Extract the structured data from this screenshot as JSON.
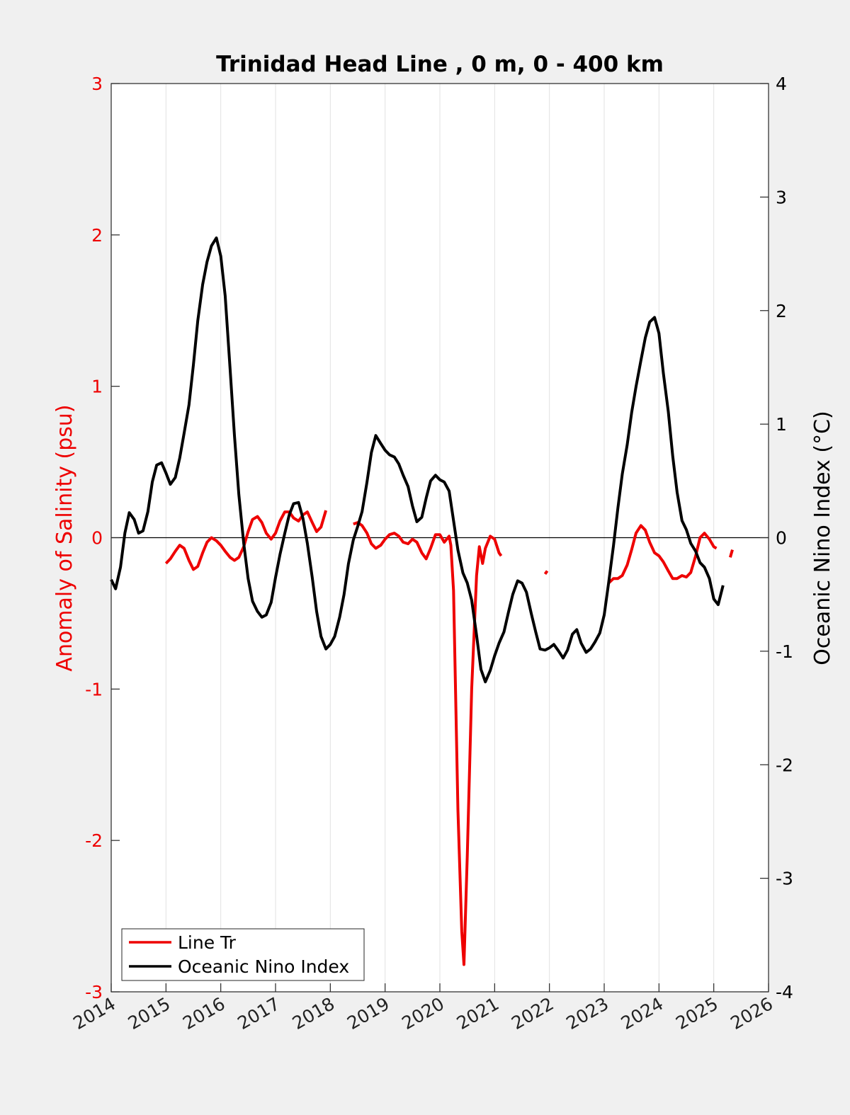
{
  "chart_data": {
    "type": "line",
    "title": "Trinidad Head Line , 0 m, 0 - 400 km",
    "ylabel": "Anomaly of Salinity (psu)",
    "y2label": "Oceanic Nino Index (°C)",
    "xlim": [
      2014,
      2026
    ],
    "ylim": [
      -3,
      3
    ],
    "y2lim": [
      -4,
      4
    ],
    "x_ticks": [
      2014,
      2015,
      2016,
      2017,
      2018,
      2019,
      2020,
      2021,
      2022,
      2023,
      2024,
      2025,
      2026
    ],
    "x_tick_labels": [
      "2014",
      "2015",
      "2016",
      "2017",
      "2018",
      "2019",
      "2020",
      "2021",
      "2022",
      "2023",
      "2024",
      "2025",
      "2026"
    ],
    "y_ticks": [
      -3,
      -2,
      -1,
      0,
      1,
      2,
      3
    ],
    "y_tick_labels": [
      "-3",
      "-2",
      "-1",
      "0",
      "1",
      "2",
      "3"
    ],
    "y2_ticks": [
      -4,
      -3,
      -2,
      -1,
      0,
      1,
      2,
      3,
      4
    ],
    "y2_tick_labels": [
      "-4",
      "-3",
      "-2",
      "-1",
      "0",
      "1",
      "2",
      "3",
      "4"
    ],
    "grid": "vertical",
    "legend_position": "bottom-left",
    "series": [
      {
        "name": "Line Tr",
        "color": "#ee0000",
        "axis": "left",
        "segments": [
          [
            [
              2015.0,
              -0.17
            ],
            [
              2015.08,
              -0.14
            ],
            [
              2015.17,
              -0.09
            ],
            [
              2015.25,
              -0.05
            ],
            [
              2015.33,
              -0.07
            ],
            [
              2015.42,
              -0.15
            ],
            [
              2015.5,
              -0.21
            ],
            [
              2015.58,
              -0.19
            ],
            [
              2015.67,
              -0.1
            ],
            [
              2015.75,
              -0.03
            ],
            [
              2015.83,
              0.0
            ],
            [
              2015.92,
              -0.02
            ],
            [
              2016.0,
              -0.05
            ],
            [
              2016.08,
              -0.09
            ],
            [
              2016.17,
              -0.13
            ],
            [
              2016.25,
              -0.15
            ],
            [
              2016.33,
              -0.13
            ],
            [
              2016.42,
              -0.06
            ],
            [
              2016.5,
              0.04
            ],
            [
              2016.58,
              0.12
            ],
            [
              2016.67,
              0.14
            ],
            [
              2016.75,
              0.1
            ],
            [
              2016.83,
              0.03
            ],
            [
              2016.92,
              -0.01
            ],
            [
              2017.0,
              0.03
            ],
            [
              2017.08,
              0.11
            ],
            [
              2017.17,
              0.17
            ],
            [
              2017.25,
              0.17
            ],
            [
              2017.33,
              0.13
            ],
            [
              2017.42,
              0.11
            ],
            [
              2017.5,
              0.15
            ],
            [
              2017.58,
              0.17
            ],
            [
              2017.67,
              0.1
            ],
            [
              2017.75,
              0.04
            ],
            [
              2017.83,
              0.07
            ],
            [
              2017.92,
              0.18
            ]
          ],
          [
            [
              2018.42,
              0.09
            ],
            [
              2018.5,
              0.1
            ],
            [
              2018.58,
              0.08
            ],
            [
              2018.67,
              0.03
            ],
            [
              2018.75,
              -0.04
            ],
            [
              2018.83,
              -0.07
            ],
            [
              2018.92,
              -0.05
            ],
            [
              2019.0,
              -0.01
            ],
            [
              2019.08,
              0.02
            ],
            [
              2019.17,
              0.03
            ],
            [
              2019.25,
              0.01
            ],
            [
              2019.33,
              -0.03
            ],
            [
              2019.42,
              -0.04
            ],
            [
              2019.5,
              -0.01
            ],
            [
              2019.58,
              -0.03
            ],
            [
              2019.67,
              -0.1
            ],
            [
              2019.75,
              -0.14
            ],
            [
              2019.83,
              -0.07
            ],
            [
              2019.92,
              0.02
            ],
            [
              2020.0,
              0.02
            ],
            [
              2020.08,
              -0.03
            ],
            [
              2020.17,
              0.01
            ],
            [
              2020.2,
              -0.05
            ],
            [
              2020.25,
              -0.35
            ],
            [
              2020.33,
              -1.8
            ],
            [
              2020.4,
              -2.6
            ],
            [
              2020.44,
              -2.82
            ],
            [
              2020.5,
              -2.1
            ],
            [
              2020.58,
              -1.0
            ],
            [
              2020.67,
              -0.25
            ],
            [
              2020.72,
              -0.06
            ],
            [
              2020.78,
              -0.17
            ],
            [
              2020.83,
              -0.07
            ],
            [
              2020.92,
              0.01
            ],
            [
              2021.0,
              -0.01
            ],
            [
              2021.08,
              -0.1
            ],
            [
              2021.12,
              -0.12
            ]
          ],
          [
            [
              2021.92,
              -0.24
            ],
            [
              2021.96,
              -0.22
            ]
          ],
          [
            [
              2023.08,
              -0.3
            ],
            [
              2023.17,
              -0.27
            ],
            [
              2023.25,
              -0.27
            ],
            [
              2023.33,
              -0.25
            ],
            [
              2023.42,
              -0.18
            ],
            [
              2023.5,
              -0.08
            ],
            [
              2023.58,
              0.03
            ],
            [
              2023.67,
              0.08
            ],
            [
              2023.75,
              0.05
            ],
            [
              2023.83,
              -0.03
            ],
            [
              2023.92,
              -0.1
            ],
            [
              2024.0,
              -0.12
            ],
            [
              2024.08,
              -0.16
            ],
            [
              2024.17,
              -0.22
            ],
            [
              2024.25,
              -0.27
            ],
            [
              2024.33,
              -0.27
            ],
            [
              2024.42,
              -0.25
            ],
            [
              2024.5,
              -0.26
            ],
            [
              2024.58,
              -0.23
            ],
            [
              2024.67,
              -0.12
            ],
            [
              2024.75,
              0.0
            ],
            [
              2024.83,
              0.03
            ],
            [
              2024.92,
              -0.01
            ],
            [
              2025.0,
              -0.06
            ],
            [
              2025.05,
              -0.07
            ]
          ],
          [
            [
              2025.3,
              -0.13
            ],
            [
              2025.34,
              -0.08
            ]
          ]
        ]
      },
      {
        "name": "Oceanic Nino Index",
        "color": "#000000",
        "axis": "right",
        "segments": [
          [
            [
              2014.0,
              -0.37
            ],
            [
              2014.08,
              -0.45
            ],
            [
              2014.17,
              -0.26
            ],
            [
              2014.25,
              0.04
            ],
            [
              2014.33,
              0.22
            ],
            [
              2014.42,
              0.16
            ],
            [
              2014.5,
              0.04
            ],
            [
              2014.58,
              0.06
            ],
            [
              2014.67,
              0.23
            ],
            [
              2014.75,
              0.49
            ],
            [
              2014.83,
              0.64
            ],
            [
              2014.92,
              0.66
            ],
            [
              2015.0,
              0.57
            ],
            [
              2015.08,
              0.47
            ],
            [
              2015.17,
              0.53
            ],
            [
              2015.25,
              0.7
            ],
            [
              2015.33,
              0.92
            ],
            [
              2015.42,
              1.17
            ],
            [
              2015.5,
              1.52
            ],
            [
              2015.58,
              1.91
            ],
            [
              2015.67,
              2.23
            ],
            [
              2015.75,
              2.43
            ],
            [
              2015.83,
              2.57
            ],
            [
              2015.92,
              2.64
            ],
            [
              2016.0,
              2.48
            ],
            [
              2016.08,
              2.13
            ],
            [
              2016.17,
              1.49
            ],
            [
              2016.25,
              0.9
            ],
            [
              2016.33,
              0.38
            ],
            [
              2016.42,
              -0.05
            ],
            [
              2016.5,
              -0.36
            ],
            [
              2016.58,
              -0.56
            ],
            [
              2016.67,
              -0.65
            ],
            [
              2016.75,
              -0.7
            ],
            [
              2016.83,
              -0.68
            ],
            [
              2016.92,
              -0.57
            ],
            [
              2017.0,
              -0.35
            ],
            [
              2017.08,
              -0.15
            ],
            [
              2017.17,
              0.04
            ],
            [
              2017.25,
              0.2
            ],
            [
              2017.33,
              0.3
            ],
            [
              2017.42,
              0.31
            ],
            [
              2017.5,
              0.17
            ],
            [
              2017.58,
              -0.05
            ],
            [
              2017.67,
              -0.35
            ],
            [
              2017.75,
              -0.65
            ],
            [
              2017.83,
              -0.87
            ],
            [
              2017.92,
              -0.98
            ],
            [
              2018.0,
              -0.94
            ],
            [
              2018.08,
              -0.87
            ],
            [
              2018.17,
              -0.7
            ],
            [
              2018.25,
              -0.5
            ],
            [
              2018.33,
              -0.23
            ],
            [
              2018.42,
              -0.02
            ],
            [
              2018.5,
              0.1
            ],
            [
              2018.58,
              0.23
            ],
            [
              2018.67,
              0.49
            ],
            [
              2018.75,
              0.75
            ],
            [
              2018.83,
              0.9
            ],
            [
              2018.92,
              0.83
            ],
            [
              2019.0,
              0.77
            ],
            [
              2019.08,
              0.73
            ],
            [
              2019.17,
              0.71
            ],
            [
              2019.25,
              0.65
            ],
            [
              2019.33,
              0.55
            ],
            [
              2019.42,
              0.45
            ],
            [
              2019.5,
              0.28
            ],
            [
              2019.58,
              0.14
            ],
            [
              2019.67,
              0.18
            ],
            [
              2019.75,
              0.35
            ],
            [
              2019.83,
              0.5
            ],
            [
              2019.92,
              0.55
            ],
            [
              2020.0,
              0.51
            ],
            [
              2020.08,
              0.49
            ],
            [
              2020.17,
              0.41
            ],
            [
              2020.25,
              0.15
            ],
            [
              2020.33,
              -0.11
            ],
            [
              2020.42,
              -0.31
            ],
            [
              2020.5,
              -0.4
            ],
            [
              2020.58,
              -0.55
            ],
            [
              2020.67,
              -0.86
            ],
            [
              2020.75,
              -1.16
            ],
            [
              2020.83,
              -1.27
            ],
            [
              2020.92,
              -1.17
            ],
            [
              2021.0,
              -1.04
            ],
            [
              2021.08,
              -0.93
            ],
            [
              2021.17,
              -0.83
            ],
            [
              2021.25,
              -0.66
            ],
            [
              2021.33,
              -0.5
            ],
            [
              2021.42,
              -0.38
            ],
            [
              2021.5,
              -0.4
            ],
            [
              2021.58,
              -0.48
            ],
            [
              2021.67,
              -0.67
            ],
            [
              2021.75,
              -0.83
            ],
            [
              2021.83,
              -0.98
            ],
            [
              2021.92,
              -0.99
            ],
            [
              2022.0,
              -0.97
            ],
            [
              2022.08,
              -0.94
            ],
            [
              2022.17,
              -1.0
            ],
            [
              2022.25,
              -1.06
            ],
            [
              2022.33,
              -0.99
            ],
            [
              2022.42,
              -0.85
            ],
            [
              2022.5,
              -0.81
            ],
            [
              2022.58,
              -0.93
            ],
            [
              2022.67,
              -1.01
            ],
            [
              2022.75,
              -0.98
            ],
            [
              2022.83,
              -0.92
            ],
            [
              2022.92,
              -0.84
            ],
            [
              2023.0,
              -0.68
            ],
            [
              2023.08,
              -0.4
            ],
            [
              2023.17,
              -0.07
            ],
            [
              2023.25,
              0.26
            ],
            [
              2023.33,
              0.56
            ],
            [
              2023.42,
              0.82
            ],
            [
              2023.5,
              1.1
            ],
            [
              2023.58,
              1.33
            ],
            [
              2023.67,
              1.56
            ],
            [
              2023.75,
              1.76
            ],
            [
              2023.83,
              1.9
            ],
            [
              2023.92,
              1.94
            ],
            [
              2024.0,
              1.8
            ],
            [
              2024.08,
              1.45
            ],
            [
              2024.17,
              1.11
            ],
            [
              2024.25,
              0.72
            ],
            [
              2024.33,
              0.4
            ],
            [
              2024.42,
              0.15
            ],
            [
              2024.5,
              0.07
            ],
            [
              2024.58,
              -0.05
            ],
            [
              2024.67,
              -0.12
            ],
            [
              2024.75,
              -0.22
            ],
            [
              2024.83,
              -0.26
            ],
            [
              2024.92,
              -0.36
            ],
            [
              2025.0,
              -0.54
            ],
            [
              2025.08,
              -0.59
            ],
            [
              2025.17,
              -0.42
            ]
          ]
        ]
      }
    ]
  }
}
